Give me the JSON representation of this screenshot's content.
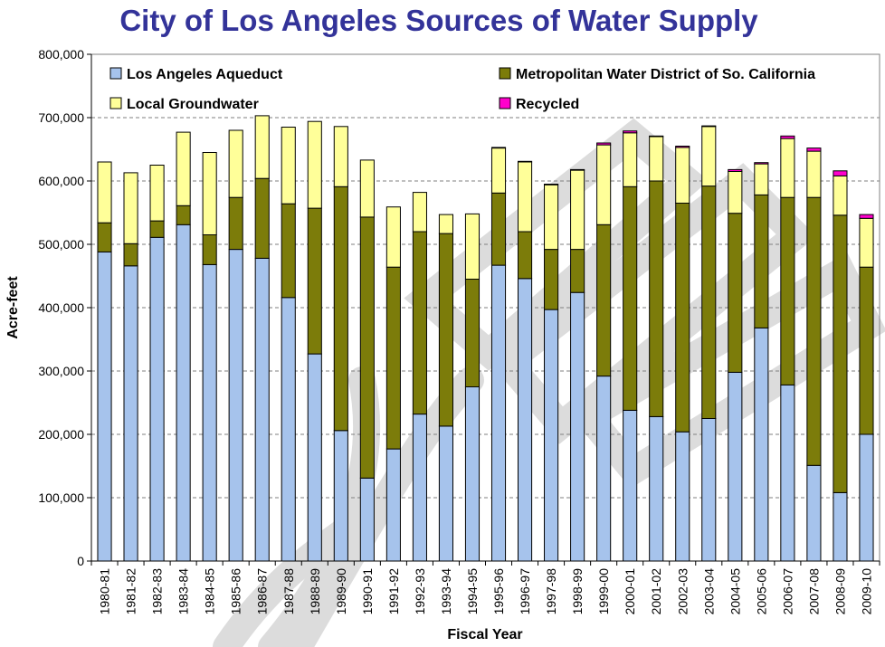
{
  "chart_data": {
    "type": "bar",
    "stacked": true,
    "title": "City of Los Angeles Sources of Water Supply",
    "xlabel": "Fiscal Year",
    "ylabel": "Acre-feet",
    "ylim": [
      0,
      800000
    ],
    "yticks": [
      0,
      100000,
      200000,
      300000,
      400000,
      500000,
      600000,
      700000,
      800000
    ],
    "ytick_labels": [
      "0",
      "100,000",
      "200,000",
      "300,000",
      "400,000",
      "500,000",
      "600,000",
      "700,000",
      "800,000"
    ],
    "grid": "horizontal dashed",
    "legend_position": "top",
    "categories": [
      "1980-81",
      "1981-82",
      "1982-83",
      "1983-84",
      "1984-85",
      "1985-86",
      "1986-87",
      "1987-88",
      "1988-89",
      "1989-90",
      "1990-91",
      "1991-92",
      "1992-93",
      "1993-94",
      "1994-95",
      "1995-96",
      "1996-97",
      "1997-98",
      "1998-99",
      "1999-00",
      "2000-01",
      "2001-02",
      "2002-03",
      "2003-04",
      "2004-05",
      "2005-06",
      "2006-07",
      "2007-08",
      "2008-09",
      "2009-10"
    ],
    "series": [
      {
        "name": "Los Angeles Aqueduct",
        "color": "#a6c3ec",
        "values": [
          488000,
          466000,
          511000,
          531000,
          468000,
          492000,
          478000,
          416000,
          327000,
          206000,
          131000,
          177000,
          232000,
          213000,
          275000,
          467000,
          446000,
          397000,
          424000,
          292000,
          238000,
          228000,
          204000,
          225000,
          298000,
          368000,
          278000,
          151000,
          108000,
          200000
        ]
      },
      {
        "name": "Metropolitan Water District of So. California",
        "color": "#7c7c0a",
        "values": [
          46000,
          35000,
          26000,
          30000,
          47000,
          82000,
          126000,
          148000,
          230000,
          385000,
          412000,
          287000,
          288000,
          304000,
          170000,
          114000,
          74000,
          95000,
          68000,
          239000,
          353000,
          372000,
          361000,
          367000,
          251000,
          210000,
          296000,
          423000,
          438000,
          264000
        ]
      },
      {
        "name": "Local Groundwater",
        "color": "#ffff99",
        "values": [
          96000,
          112000,
          88000,
          116000,
          130000,
          106000,
          99000,
          121000,
          137000,
          95000,
          90000,
          95000,
          62000,
          30000,
          103000,
          71000,
          110000,
          102000,
          125000,
          126000,
          85000,
          70000,
          88000,
          94000,
          66000,
          49000,
          93000,
          73000,
          62000,
          77000
        ]
      },
      {
        "name": "Recycled",
        "color": "#ff00cc",
        "values": [
          0,
          0,
          0,
          0,
          0,
          0,
          0,
          0,
          0,
          0,
          0,
          0,
          0,
          0,
          0,
          1000,
          1000,
          1000,
          1000,
          3000,
          3000,
          1000,
          2000,
          1000,
          3000,
          2000,
          4000,
          5000,
          8000,
          6000
        ]
      }
    ]
  }
}
